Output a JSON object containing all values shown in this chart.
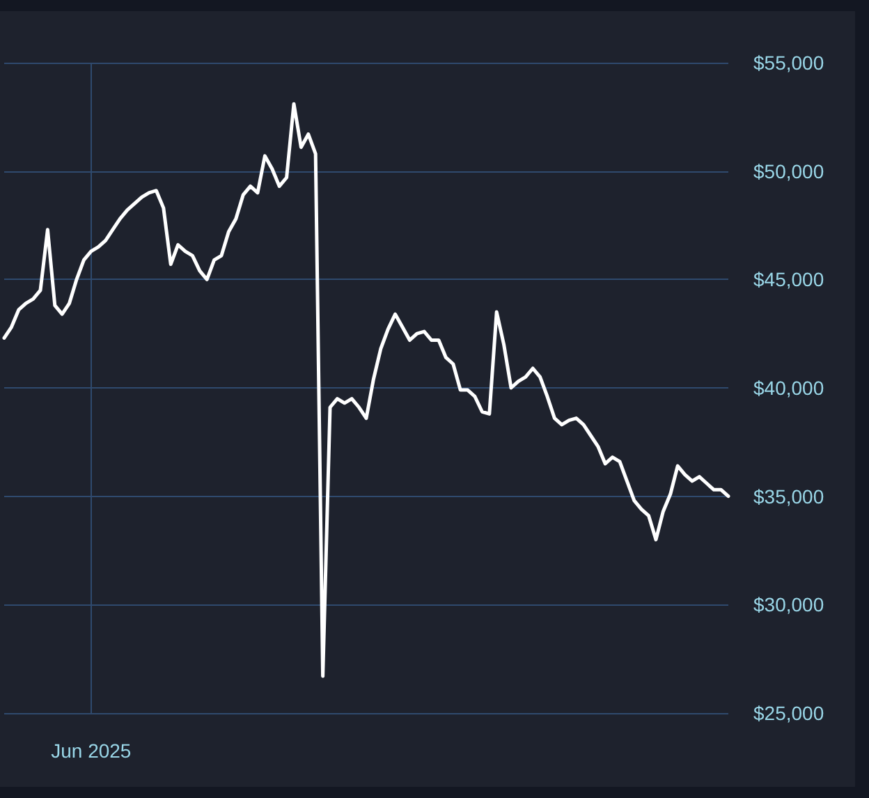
{
  "chart_data": {
    "type": "line",
    "categories": [
      null,
      null,
      null,
      null,
      null,
      null,
      null,
      null,
      null,
      null,
      null,
      null,
      "Jun 2025",
      null,
      null,
      null,
      null,
      null,
      null,
      null,
      null,
      null,
      null,
      null,
      null,
      null,
      null,
      null,
      null,
      null,
      null,
      null,
      null,
      null,
      null,
      null,
      null,
      null,
      null,
      null,
      null,
      null,
      null,
      null,
      null,
      null,
      null,
      null,
      null,
      null,
      null,
      null,
      null,
      null,
      null,
      null,
      null,
      null,
      null,
      null,
      null,
      null,
      null,
      null,
      null,
      null,
      null,
      null,
      null,
      null,
      null,
      null,
      null,
      null,
      null,
      null,
      null,
      null,
      null,
      null,
      null,
      null,
      null,
      null,
      null,
      null,
      null,
      null,
      null,
      null,
      null,
      null,
      null,
      null,
      null,
      null,
      null,
      null,
      null,
      null,
      null
    ],
    "series": [
      {
        "color": "#ffffff",
        "values": [
          42300,
          42800,
          43600,
          43900,
          44100,
          44500,
          47300,
          43800,
          43400,
          43900,
          45000,
          45900,
          46300,
          46500,
          46800,
          47300,
          47800,
          48200,
          48500,
          48800,
          49000,
          49100,
          48300,
          45700,
          46600,
          46300,
          46100,
          45400,
          45000,
          45900,
          46100,
          47200,
          47800,
          48900,
          49300,
          49000,
          50700,
          50100,
          49300,
          49700,
          53100,
          51100,
          51700,
          50800,
          26700,
          39100,
          39500,
          39300,
          39500,
          39100,
          38600,
          40400,
          41800,
          42700,
          43400,
          42800,
          42200,
          42500,
          42600,
          42200,
          42200,
          41400,
          41100,
          39900,
          39900,
          39600,
          38900,
          38800,
          43500,
          42000,
          40000,
          40300,
          40500,
          40900,
          40500,
          39600,
          38600,
          38300,
          38500,
          38600,
          38300,
          37800,
          37300,
          36500,
          36800,
          36600,
          35700,
          34800,
          34400,
          34100,
          33000,
          34300,
          35100,
          36400,
          36000,
          35700,
          35900,
          35600,
          35300,
          35300,
          35000
        ]
      }
    ],
    "ylim": [
      25000,
      55000
    ],
    "yticks": [
      {
        "value": 25000,
        "label": "$25,000"
      },
      {
        "value": 30000,
        "label": "$30,000"
      },
      {
        "value": 35000,
        "label": "$35,000"
      },
      {
        "value": 40000,
        "label": "$40,000"
      },
      {
        "value": 45000,
        "label": "$45,000"
      },
      {
        "value": 50000,
        "label": "$50,000"
      },
      {
        "value": 55000,
        "label": "$55,000"
      }
    ],
    "grid": true,
    "marker": "none",
    "line_style": "solid"
  }
}
